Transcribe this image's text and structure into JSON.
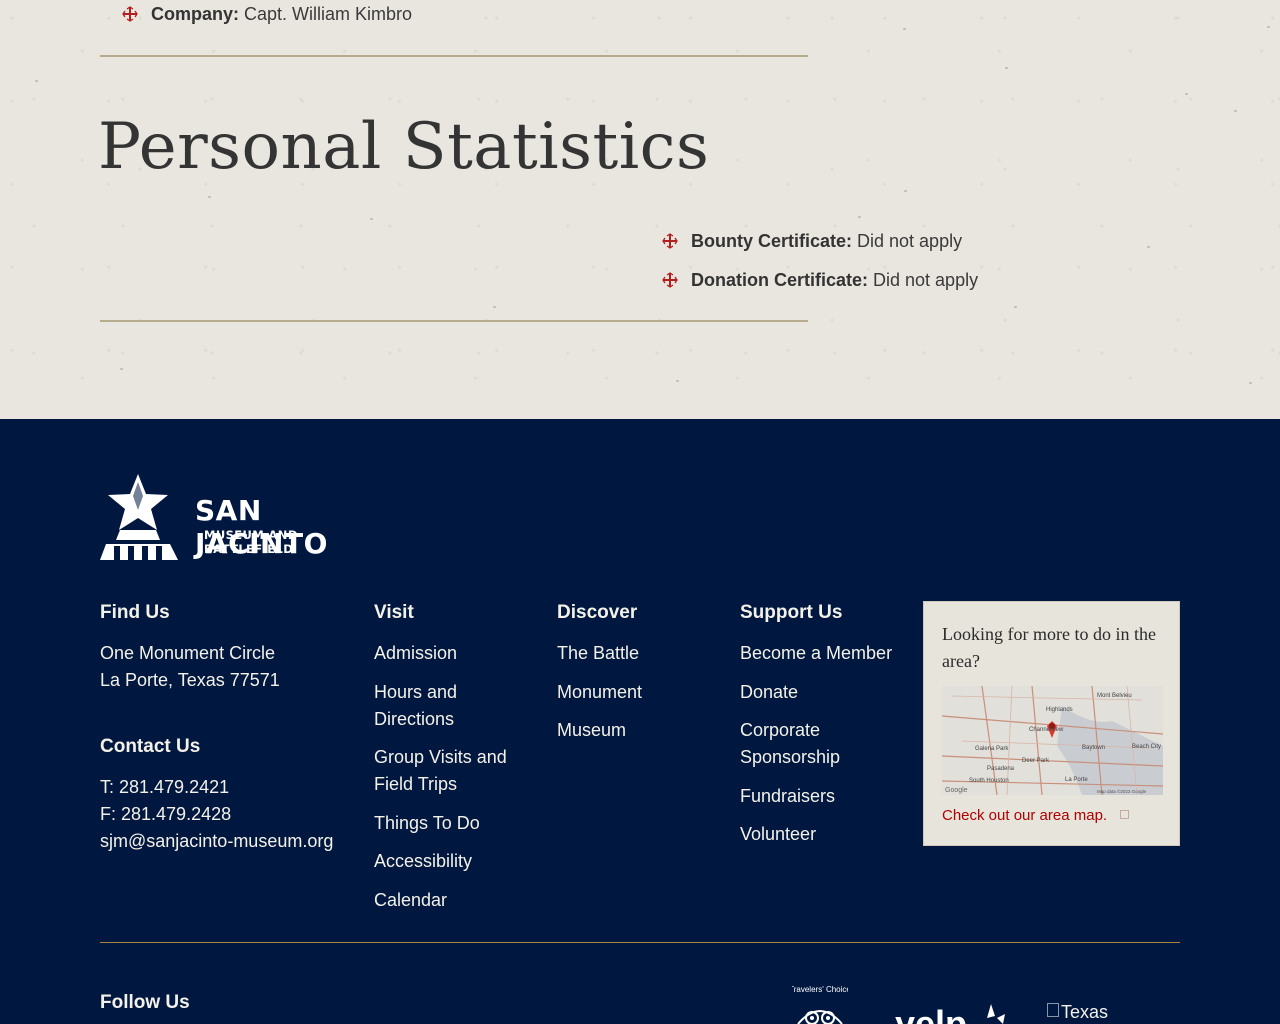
{
  "upper": {
    "company_label": "Company:",
    "company_value": "Capt. William Kimbro",
    "section_title": "Personal Statistics",
    "stats": [
      {
        "label": "Bounty Certificate:",
        "value": "Did not apply"
      },
      {
        "label": "Donation Certificate:",
        "value": "Did not apply"
      }
    ]
  },
  "footer": {
    "logo": {
      "line1": "SAN JACINTO",
      "line2": "MUSEUM AND BATTLEFIELD"
    },
    "find_us": {
      "heading": "Find Us",
      "address1": "One Monument Circle",
      "address2": "La Porte, Texas 77571"
    },
    "contact": {
      "heading": "Contact Us",
      "phone": "T: 281.479.2421",
      "fax": "F: 281.479.2428",
      "email": "sjm@sanjacinto-museum.org"
    },
    "visit": {
      "heading": "Visit",
      "links": [
        "Admission",
        "Hours and Directions",
        "Group Visits and Field Trips",
        "Things To Do",
        "Accessibility",
        "Calendar"
      ]
    },
    "discover": {
      "heading": "Discover",
      "links": [
        "The Battle",
        "Monument",
        "Museum"
      ]
    },
    "support": {
      "heading": "Support Us",
      "links": [
        "Become a Member",
        "Donate",
        "Corporate Sponsorship",
        "Fundraisers",
        "Volunteer"
      ]
    },
    "map_card": {
      "intro": "Looking for more to do in the area?",
      "link": "Check out our area map.",
      "map_labels": [
        "Mont Belvieu",
        "Highlands",
        "Channelview",
        "Baytown",
        "Beach City",
        "Galena Park",
        "Deer Park",
        "Pasadena",
        "South Houston",
        "La Porte",
        "Map data ©2023 Google",
        "Google"
      ]
    },
    "follow_heading": "Follow Us",
    "badges": {
      "tripadvisor": "Travelers' Choice",
      "yelp": "yelp",
      "texas": "Texas"
    }
  },
  "colors": {
    "footer_bg": "#001840",
    "accent_red": "#b00000",
    "rule_gold": "#a8843c",
    "parchment": "#e8e6df"
  }
}
